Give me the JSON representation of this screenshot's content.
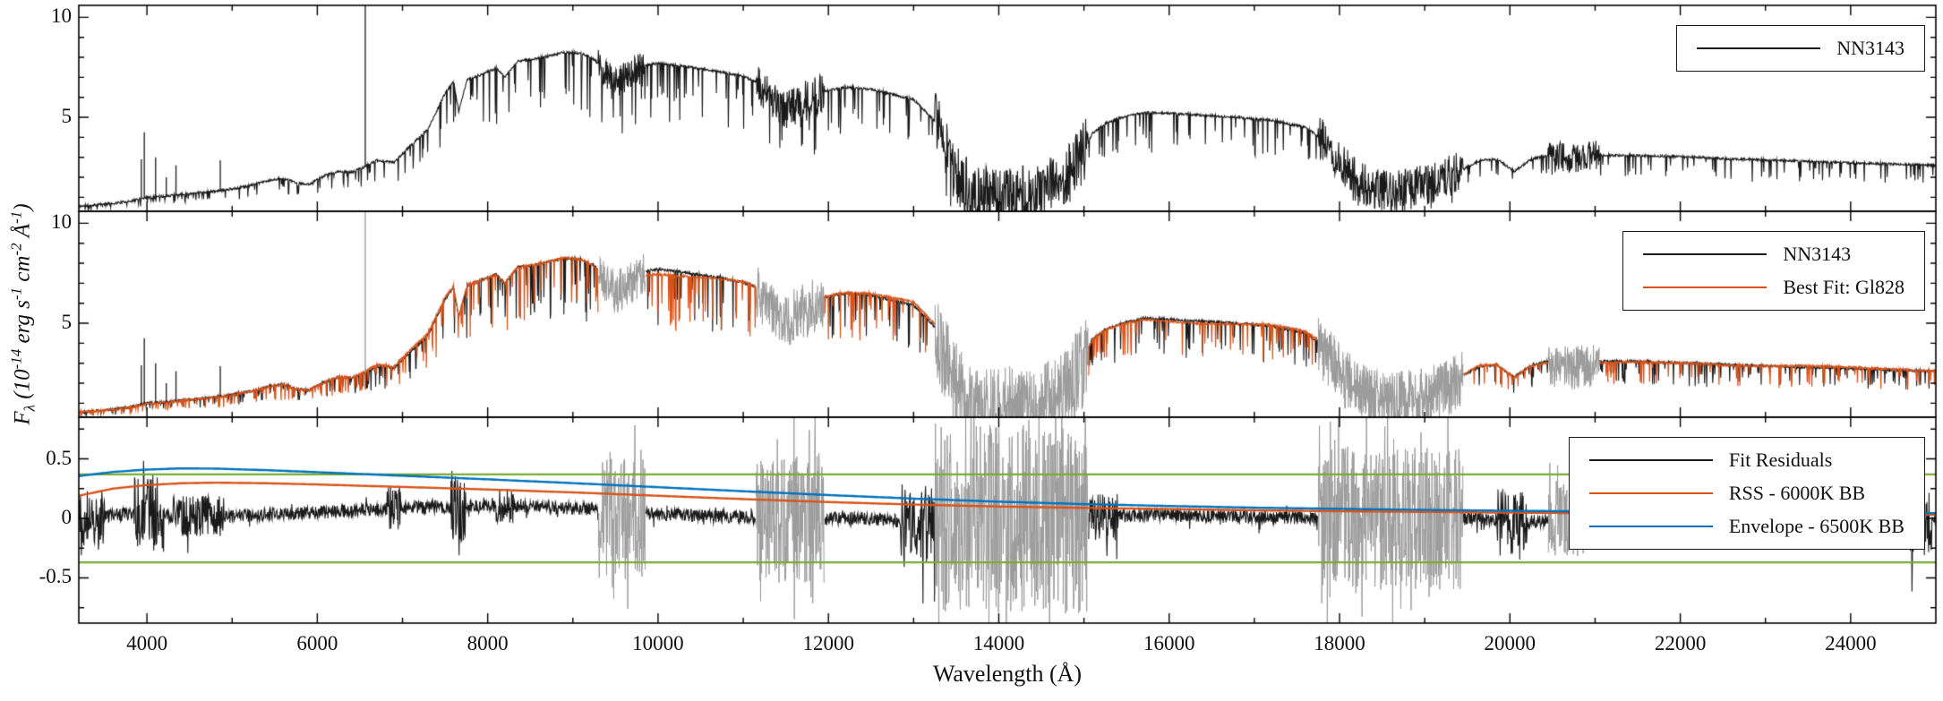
{
  "figure": {
    "background": "#ffffff"
  },
  "chart_data": {
    "type": "line",
    "title": "",
    "xlabel": "Wavelength (Å)",
    "ylabel": "F_{λ} (10^{-14} erg s^{-1} cm^{-2} Å^{-1})",
    "grid": false,
    "legend_position": "upper right",
    "x_range": [
      3200,
      25000
    ],
    "x_major_ticks": {
      "values": [
        4000,
        6000,
        8000,
        10000,
        12000,
        14000,
        16000,
        18000,
        20000,
        22000,
        24000
      ],
      "labels": [
        "4000",
        "6000",
        "8000",
        "10000",
        "12000",
        "14000",
        "16000",
        "18000",
        "20000",
        "22000",
        "24000"
      ]
    },
    "x_minor_ticks": [
      5000,
      7000,
      9000,
      11000,
      13000,
      15000,
      17000,
      19000,
      21000,
      23000
    ],
    "colors": {
      "black": "#1a1a1a",
      "gray": "#9c9c9c",
      "orange": "#d95319",
      "blue": "#0072bd",
      "green": "#77ac30"
    },
    "spectrum_continuum": [
      [
        3200,
        0.55
      ],
      [
        3400,
        0.62
      ],
      [
        3600,
        0.7
      ],
      [
        3800,
        0.8
      ],
      [
        4000,
        1.0
      ],
      [
        4200,
        1.05
      ],
      [
        4500,
        1.18
      ],
      [
        4800,
        1.3
      ],
      [
        5000,
        1.42
      ],
      [
        5200,
        1.58
      ],
      [
        5450,
        1.85
      ],
      [
        5600,
        1.95
      ],
      [
        5750,
        1.72
      ],
      [
        5900,
        1.65
      ],
      [
        6100,
        2.1
      ],
      [
        6250,
        2.3
      ],
      [
        6400,
        2.25
      ],
      [
        6550,
        2.5
      ],
      [
        6700,
        2.85
      ],
      [
        6900,
        2.75
      ],
      [
        7100,
        3.6
      ],
      [
        7300,
        4.4
      ],
      [
        7500,
        6.2
      ],
      [
        7600,
        6.8
      ],
      [
        7660,
        5.3
      ],
      [
        7760,
        6.9
      ],
      [
        7900,
        7.1
      ],
      [
        8100,
        7.45
      ],
      [
        8200,
        7.0
      ],
      [
        8350,
        7.8
      ],
      [
        8600,
        7.95
      ],
      [
        8900,
        8.25
      ],
      [
        9100,
        8.2
      ],
      [
        9250,
        7.9
      ],
      [
        9500,
        6.7
      ],
      [
        9800,
        7.6
      ],
      [
        10000,
        7.7
      ],
      [
        10300,
        7.55
      ],
      [
        10700,
        7.3
      ],
      [
        11000,
        7.05
      ],
      [
        11150,
        6.8
      ],
      [
        11450,
        5.3
      ],
      [
        11700,
        5.8
      ],
      [
        11950,
        6.3
      ],
      [
        12200,
        6.5
      ],
      [
        12500,
        6.4
      ],
      [
        12800,
        6.1
      ],
      [
        13000,
        5.9
      ],
      [
        13250,
        4.8
      ],
      [
        13500,
        2.2
      ],
      [
        13700,
        1.1
      ],
      [
        13950,
        0.95
      ],
      [
        14200,
        1.05
      ],
      [
        14500,
        1.2
      ],
      [
        14750,
        1.9
      ],
      [
        14950,
        2.9
      ],
      [
        15100,
        4.2
      ],
      [
        15250,
        4.7
      ],
      [
        15450,
        5.0
      ],
      [
        15700,
        5.25
      ],
      [
        16000,
        5.2
      ],
      [
        16400,
        5.1
      ],
      [
        16800,
        5.0
      ],
      [
        17200,
        4.85
      ],
      [
        17600,
        4.5
      ],
      [
        17800,
        3.9
      ],
      [
        18050,
        2.5
      ],
      [
        18350,
        1.45
      ],
      [
        18650,
        1.3
      ],
      [
        18950,
        1.55
      ],
      [
        19250,
        1.95
      ],
      [
        19450,
        2.4
      ],
      [
        19650,
        2.85
      ],
      [
        19850,
        2.9
      ],
      [
        20050,
        2.3
      ],
      [
        20250,
        2.9
      ],
      [
        20450,
        3.1
      ],
      [
        20750,
        2.95
      ],
      [
        21050,
        3.1
      ],
      [
        21400,
        3.1
      ],
      [
        21800,
        3.05
      ],
      [
        22200,
        3.0
      ],
      [
        22600,
        2.92
      ],
      [
        23000,
        2.86
      ],
      [
        23500,
        2.8
      ],
      [
        24000,
        2.72
      ],
      [
        24500,
        2.66
      ],
      [
        25000,
        2.6
      ]
    ],
    "emission_lines": [
      {
        "x": 3934,
        "peak": 2.9
      },
      {
        "x": 3969,
        "peak": 4.25
      },
      {
        "x": 4102,
        "peak": 3.0
      },
      {
        "x": 4227,
        "peak": 2.0
      },
      {
        "x": 4341,
        "peak": 2.6
      },
      {
        "x": 4861,
        "peak": 2.85
      },
      {
        "x": 6563,
        "peak": 10.8
      }
    ],
    "gray_regions": [
      {
        "x1": 9300,
        "x2": 9850,
        "flux_amp": 1.1,
        "res_amp": 0.5
      },
      {
        "x1": 11150,
        "x2": 11950,
        "flux_amp": 1.4,
        "res_amp": 0.55
      },
      {
        "x1": 13250,
        "x2": 15050,
        "flux_amp": 2.2,
        "res_amp": 0.8
      },
      {
        "x1": 17750,
        "x2": 19450,
        "flux_amp": 1.5,
        "res_amp": 0.6
      },
      {
        "x1": 20450,
        "x2": 21050,
        "flux_amp": 1.1,
        "res_amp": 0.32
      }
    ],
    "panels": [
      {
        "name": "observed-spectrum",
        "y_range": [
          0.3,
          10.6
        ],
        "y_major_ticks": {
          "values": [
            5,
            10
          ],
          "labels": [
            "5",
            "10"
          ]
        },
        "y_minor_ticks": [
          1,
          2,
          3,
          4,
          6,
          7,
          8,
          9
        ],
        "legend": [
          {
            "label": "NN3143",
            "color": "#1a1a1a"
          }
        ]
      },
      {
        "name": "best-fit-comparison",
        "y_range": [
          0.3,
          10.6
        ],
        "y_major_ticks": {
          "values": [
            5,
            10
          ],
          "labels": [
            "5",
            "10"
          ]
        },
        "y_minor_ticks": [
          1,
          2,
          3,
          4,
          6,
          7,
          8,
          9
        ],
        "legend": [
          {
            "label": "NN3143",
            "color": "#1a1a1a"
          },
          {
            "label": "Best Fit: Gl828",
            "color": "#d95319"
          }
        ]
      },
      {
        "name": "fit-residuals",
        "y_range": [
          -0.88,
          0.85
        ],
        "y_major_ticks": {
          "values": [
            -0.5,
            0,
            0.5
          ],
          "labels": [
            "-0.5",
            "0",
            "0.5"
          ]
        },
        "y_minor_ticks": [
          -0.75,
          -0.25,
          0.25,
          0.75
        ],
        "legend": [
          {
            "label": "Fit Residuals",
            "color": "#1a1a1a"
          },
          {
            "label": "RSS - 6000K BB",
            "color": "#d95319"
          },
          {
            "label": "Envelope - 6500K BB",
            "color": "#0072bd"
          }
        ],
        "sigma_lines": {
          "values": [
            0.37,
            -0.37
          ],
          "color": "#77ac30"
        },
        "noise_base": 0.055,
        "residual_wiggle": [
          [
            3200,
            0.0
          ],
          [
            3800,
            0.04
          ],
          [
            4300,
            0.02
          ],
          [
            5000,
            0.02
          ],
          [
            6000,
            0.05
          ],
          [
            6800,
            0.08
          ],
          [
            7600,
            0.1
          ],
          [
            8400,
            0.1
          ],
          [
            9200,
            0.08
          ],
          [
            9900,
            0.04
          ],
          [
            10600,
            0.02
          ],
          [
            11500,
            0.0
          ],
          [
            12500,
            0.0
          ],
          [
            13100,
            -0.04
          ],
          [
            15200,
            0.02
          ],
          [
            16000,
            0.03
          ],
          [
            17000,
            0.01
          ],
          [
            18000,
            0.0
          ],
          [
            19600,
            0.0
          ],
          [
            20100,
            -0.03
          ],
          [
            21000,
            0.0
          ],
          [
            22500,
            0.0
          ],
          [
            23500,
            -0.01
          ],
          [
            24500,
            -0.03
          ],
          [
            25000,
            -0.04
          ]
        ],
        "bursts": [
          {
            "x1": 3200,
            "x2": 3500,
            "amp": 0.18
          },
          {
            "x1": 3850,
            "x2": 4200,
            "amp": 0.28
          },
          {
            "x1": 4300,
            "x2": 4900,
            "amp": 0.12
          },
          {
            "x1": 6820,
            "x2": 6980,
            "amp": 0.14
          },
          {
            "x1": 7560,
            "x2": 7740,
            "amp": 0.26
          },
          {
            "x1": 8100,
            "x2": 8300,
            "amp": 0.1
          },
          {
            "x1": 12850,
            "x2": 13250,
            "amp": 0.26
          },
          {
            "x1": 15050,
            "x2": 15400,
            "amp": 0.16
          },
          {
            "x1": 19850,
            "x2": 20200,
            "amp": 0.22
          },
          {
            "x1": 21000,
            "x2": 21200,
            "amp": 0.12
          },
          {
            "x1": 24550,
            "x2": 24950,
            "amp": 0.2
          }
        ],
        "rss_curve": [
          [
            3200,
            0.19
          ],
          [
            3600,
            0.25
          ],
          [
            4000,
            0.28
          ],
          [
            4400,
            0.295
          ],
          [
            4800,
            0.3
          ],
          [
            5400,
            0.295
          ],
          [
            6000,
            0.285
          ],
          [
            6600,
            0.272
          ],
          [
            7200,
            0.26
          ],
          [
            8000,
            0.243
          ],
          [
            9000,
            0.218
          ],
          [
            10000,
            0.19
          ],
          [
            11000,
            0.162
          ],
          [
            12000,
            0.137
          ],
          [
            13000,
            0.116
          ],
          [
            14000,
            0.1
          ],
          [
            15000,
            0.088
          ],
          [
            16000,
            0.078
          ],
          [
            17000,
            0.068
          ],
          [
            18000,
            0.06
          ],
          [
            19000,
            0.054
          ],
          [
            20000,
            0.048
          ],
          [
            21000,
            0.044
          ],
          [
            22000,
            0.04
          ],
          [
            23000,
            0.037
          ],
          [
            24000,
            0.034
          ],
          [
            25000,
            0.032
          ]
        ],
        "envelope_curve": [
          [
            3200,
            0.355
          ],
          [
            3600,
            0.39
          ],
          [
            4000,
            0.41
          ],
          [
            4400,
            0.42
          ],
          [
            4800,
            0.418
          ],
          [
            5400,
            0.405
          ],
          [
            6000,
            0.388
          ],
          [
            6600,
            0.37
          ],
          [
            7200,
            0.352
          ],
          [
            8000,
            0.328
          ],
          [
            9000,
            0.296
          ],
          [
            10000,
            0.262
          ],
          [
            11000,
            0.228
          ],
          [
            12000,
            0.196
          ],
          [
            13000,
            0.166
          ],
          [
            14000,
            0.14
          ],
          [
            15000,
            0.12
          ],
          [
            16000,
            0.104
          ],
          [
            17000,
            0.09
          ],
          [
            18000,
            0.08
          ],
          [
            19000,
            0.071
          ],
          [
            20000,
            0.064
          ],
          [
            21000,
            0.058
          ],
          [
            22000,
            0.054
          ],
          [
            23000,
            0.05
          ],
          [
            24000,
            0.047
          ],
          [
            25000,
            0.044
          ]
        ]
      }
    ]
  }
}
